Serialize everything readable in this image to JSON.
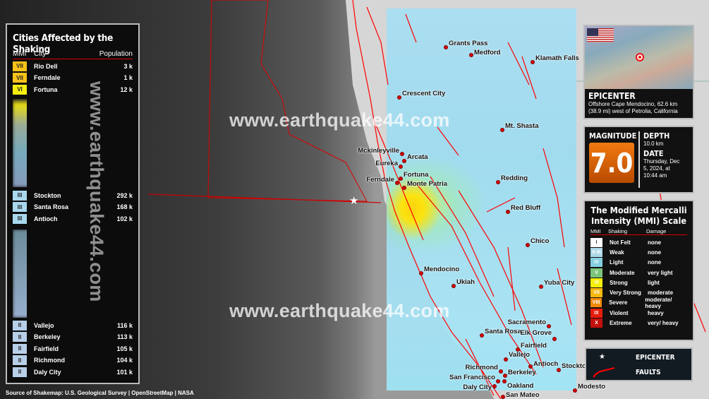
{
  "watermark": "www.earthquake44.com",
  "cities_panel": {
    "title": "Cities Affected by the Shaking",
    "headers": {
      "mmi": "MMI",
      "city": "City",
      "population": "Population"
    },
    "rows_top": [
      {
        "mmi": "VII",
        "city": "Rio Dell",
        "pop": "3 k",
        "color": "#f7c21a"
      },
      {
        "mmi": "VII",
        "city": "Ferndale",
        "pop": "1 k",
        "color": "#f7c21a"
      },
      {
        "mmi": "VI",
        "city": "Fortuna",
        "pop": "12 k",
        "color": "#f5ef10"
      }
    ],
    "rows_mid": [
      {
        "mmi": "III",
        "city": "Stockton",
        "pop": "292 k",
        "color": "#a9d8ee"
      },
      {
        "mmi": "III",
        "city": "Santa Rosa",
        "pop": "168 k",
        "color": "#a9d8ee"
      },
      {
        "mmi": "III",
        "city": "Antioch",
        "pop": "102 k",
        "color": "#a9d8ee"
      }
    ],
    "rows_bottom": [
      {
        "mmi": "II",
        "city": "Vallejo",
        "pop": "116 k",
        "color": "#b7cfe8"
      },
      {
        "mmi": "II",
        "city": "Berkeley",
        "pop": "113 k",
        "color": "#b7cfe8"
      },
      {
        "mmi": "II",
        "city": "Fairfield",
        "pop": "105 k",
        "color": "#b7cfe8"
      },
      {
        "mmi": "II",
        "city": "Richmond",
        "pop": "104 k",
        "color": "#b7cfe8"
      },
      {
        "mmi": "II",
        "city": "Daly City",
        "pop": "101 k",
        "color": "#b7cfe8"
      }
    ]
  },
  "source": "Source of Shakemap: U.S. Geological Survey | OpenStreetMap | NASA",
  "epicenter": {
    "title": "EPICENTER",
    "text": "Offshore Cape Mendocino, 62.6 km (38.9 mi) west of Petrolia, California",
    "flag": "us-flag-icon"
  },
  "quake": {
    "mag_label": "MAGNITUDE",
    "magnitude": "7.0",
    "depth_label": "DEPTH",
    "depth": "10.0 km",
    "date_label": "DATE",
    "date": "Thursday, Dec 5, 2024, at 10:44 am",
    "mag_color": "#e86a00"
  },
  "scale": {
    "title": "The Modified Mercalli Intensity (MMI) Scale",
    "headers": {
      "mmi": "MMI",
      "shaking": "Shaking",
      "damage": "Damage"
    },
    "rows": [
      {
        "mmi": "I",
        "shaking": "Not Felt",
        "damage": "none",
        "color": "#ffffff"
      },
      {
        "mmi": "II-III",
        "shaking": "Weak",
        "damage": "none",
        "color": "#acd8e9"
      },
      {
        "mmi": "IV",
        "shaking": "Light",
        "damage": "none",
        "color": "#85d0e0"
      },
      {
        "mmi": "V",
        "shaking": "Moderate",
        "damage": "very light",
        "color": "#7cc47c"
      },
      {
        "mmi": "VI",
        "shaking": "Strong",
        "damage": "light",
        "color": "#f4ee0c"
      },
      {
        "mmi": "VII",
        "shaking": "Very Strong",
        "damage": "moderate",
        "color": "#f6b80f"
      },
      {
        "mmi": "VIII",
        "shaking": "Severe",
        "damage": "moderate/ heavy",
        "color": "#f38a0c"
      },
      {
        "mmi": "IX",
        "shaking": "Violent",
        "damage": "heavy",
        "color": "#e61c0c"
      },
      {
        "mmi": "X",
        "shaking": "Extreme",
        "damage": "very/ heavy",
        "color": "#c4100c"
      }
    ]
  },
  "legend": {
    "epicenter": "EPICENTER",
    "faults": "FAULTS",
    "fault_color": "#ff0000"
  },
  "map_cities": [
    "Grants Pass",
    "Medford",
    "Klamath Falls",
    "Crescent City",
    "Mt. Shasta",
    "Mckinleyville",
    "Arcata",
    "Eureka",
    "Fortuna",
    "Ferndale",
    "Monte Patria",
    "Redding",
    "Red Bluff",
    "Chico",
    "Mendocino",
    "Ukiah",
    "Yuba City",
    "Santa Rosa",
    "Sacramento",
    "Elk Grove",
    "Fairfield",
    "Vallejo",
    "Antioch",
    "Stockton",
    "Richmond",
    "Berkeley",
    "San Francisco",
    "Oakland",
    "Daly City",
    "San Mateo",
    "Modesto"
  ]
}
